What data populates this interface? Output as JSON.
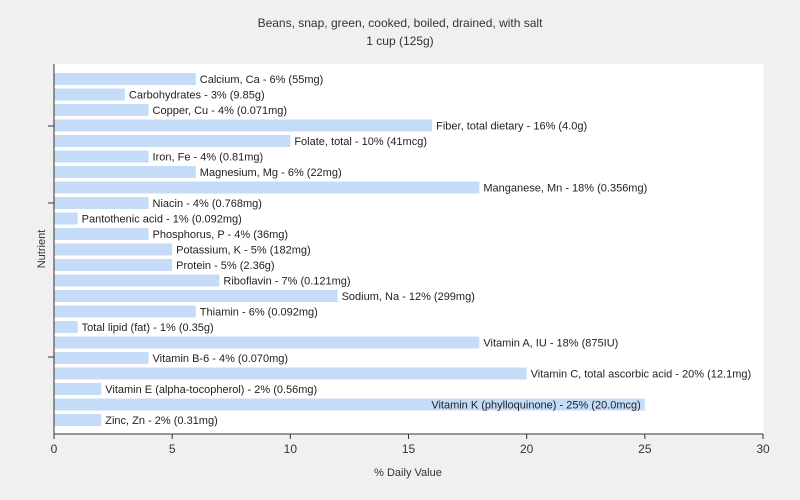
{
  "chart_data": {
    "type": "bar",
    "orientation": "horizontal",
    "title": "Beans, snap, green, cooked, boiled, drained, with salt",
    "subtitle": "1 cup (125g)",
    "xlabel": "% Daily Value",
    "ylabel": "Nutrient",
    "xlim": [
      0,
      30
    ],
    "xticks": [
      0,
      5,
      10,
      15,
      20,
      25,
      30
    ],
    "grid": true,
    "colors": {
      "bar": "#c5dcf8",
      "background": "#f0f0f0",
      "plot_background": "#ffffff"
    },
    "bars": [
      {
        "label": "Calcium, Ca - 6% (55mg)",
        "value": 6
      },
      {
        "label": "Carbohydrates - 3% (9.85g)",
        "value": 3
      },
      {
        "label": "Copper, Cu - 4% (0.071mg)",
        "value": 4
      },
      {
        "label": "Fiber, total dietary - 16% (4.0g)",
        "value": 16
      },
      {
        "label": "Folate, total - 10% (41mcg)",
        "value": 10
      },
      {
        "label": "Iron, Fe - 4% (0.81mg)",
        "value": 4
      },
      {
        "label": "Magnesium, Mg - 6% (22mg)",
        "value": 6
      },
      {
        "label": "Manganese, Mn - 18% (0.356mg)",
        "value": 18
      },
      {
        "label": "Niacin - 4% (0.768mg)",
        "value": 4
      },
      {
        "label": "Pantothenic acid - 1% (0.092mg)",
        "value": 1
      },
      {
        "label": "Phosphorus, P - 4% (36mg)",
        "value": 4
      },
      {
        "label": "Potassium, K - 5% (182mg)",
        "value": 5
      },
      {
        "label": "Protein - 5% (2.36g)",
        "value": 5
      },
      {
        "label": "Riboflavin - 7% (0.121mg)",
        "value": 7
      },
      {
        "label": "Sodium, Na - 12% (299mg)",
        "value": 12
      },
      {
        "label": "Thiamin - 6% (0.092mg)",
        "value": 6
      },
      {
        "label": "Total lipid (fat) - 1% (0.35g)",
        "value": 1
      },
      {
        "label": "Vitamin A, IU - 18% (875IU)",
        "value": 18
      },
      {
        "label": "Vitamin B-6 - 4% (0.070mg)",
        "value": 4
      },
      {
        "label": "Vitamin C, total ascorbic acid - 20% (12.1mg)",
        "value": 20
      },
      {
        "label": "Vitamin E (alpha-tocopherol) - 2% (0.56mg)",
        "value": 2
      },
      {
        "label": "Vitamin K (phylloquinone) - 25% (20.0mcg)",
        "value": 25
      },
      {
        "label": "Zinc, Zn - 2% (0.31mg)",
        "value": 2
      }
    ]
  }
}
